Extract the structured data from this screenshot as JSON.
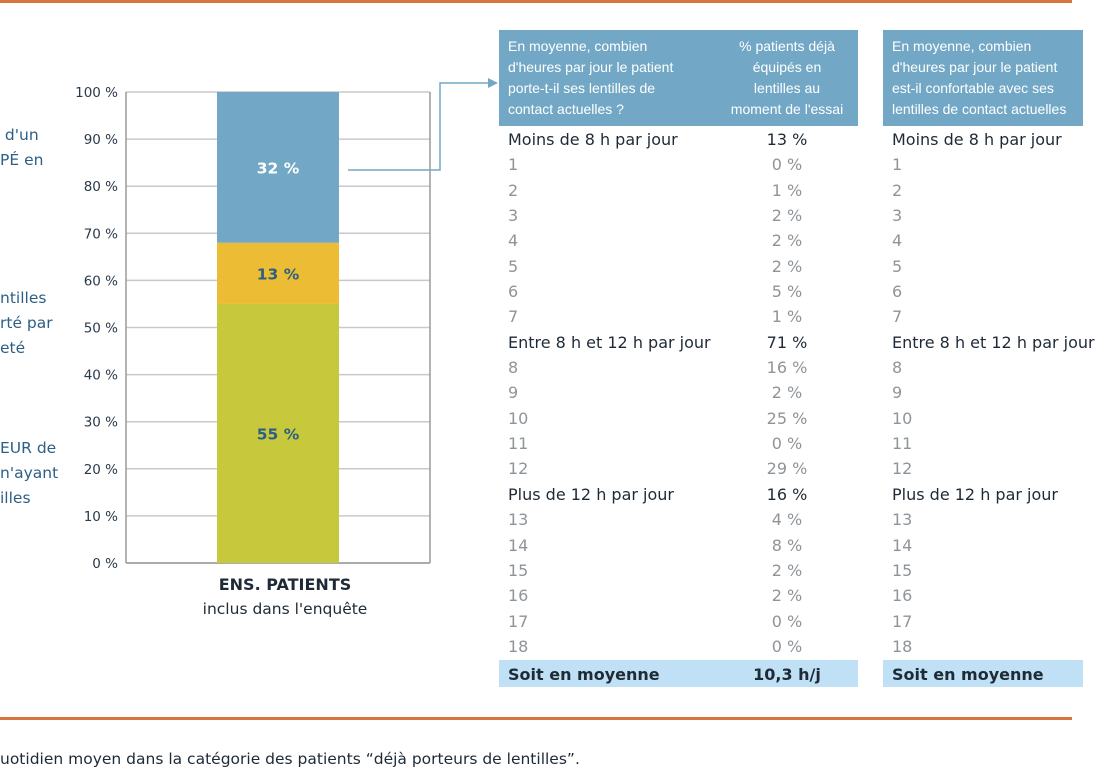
{
  "left_labels": [
    {
      "text": " d'un\nPÉ en"
    },
    {
      "text": "ntilles\nrté par\neté"
    },
    {
      "text": "EUR de\nn'ayant\nilles"
    }
  ],
  "chart_data": {
    "type": "bar",
    "stacked": true,
    "categories": [
      "ENS. PATIENTS"
    ],
    "category_sublabel": "inclus dans l'enquête",
    "series": [
      {
        "values": [
          55
        ],
        "color": "#c8c83c",
        "label": "55 %",
        "label_color": "#2d5f85"
      },
      {
        "values": [
          13
        ],
        "color": "#ecbd34",
        "label": "13 %",
        "label_color": "#2d5f85"
      },
      {
        "values": [
          32
        ],
        "color": "#72a8c6",
        "label": "32 %",
        "label_color": "#ffffff"
      }
    ],
    "ylim": [
      0,
      100
    ],
    "yticks": [
      "0 %",
      "10 %",
      "20 %",
      "30 %",
      "40 %",
      "50 %",
      "60 %",
      "70 %",
      "80 %",
      "90 %",
      "100 %"
    ],
    "grid": true
  },
  "table1": {
    "header_col1": "En moyenne, combien\nd'heures par jour le patient\nporte-t-il ses lentilles de\ncontact actuelles ?",
    "header_col2": "% patients déjà\néquipés en\nlentilles au\nmoment de l'essai",
    "rows": [
      {
        "label": "Moins de 8 h par jour",
        "value": "13 %",
        "type": "main"
      },
      {
        "label": "1",
        "value": "0 %",
        "type": "sub"
      },
      {
        "label": "2",
        "value": "1 %",
        "type": "sub"
      },
      {
        "label": "3",
        "value": "2 %",
        "type": "sub"
      },
      {
        "label": "4",
        "value": "2 %",
        "type": "sub"
      },
      {
        "label": "5",
        "value": "2 %",
        "type": "sub"
      },
      {
        "label": "6",
        "value": "5 %",
        "type": "sub"
      },
      {
        "label": "7",
        "value": "1 %",
        "type": "sub"
      },
      {
        "label": "Entre 8 h et 12 h par jour",
        "value": "71 %",
        "type": "main"
      },
      {
        "label": "8",
        "value": "16 %",
        "type": "sub"
      },
      {
        "label": "9",
        "value": "2 %",
        "type": "sub"
      },
      {
        "label": "10",
        "value": "25 %",
        "type": "sub"
      },
      {
        "label": "11",
        "value": "0 %",
        "type": "sub"
      },
      {
        "label": "12",
        "value": "29 %",
        "type": "sub"
      },
      {
        "label": "Plus de 12 h par jour",
        "value": "16 %",
        "type": "main"
      },
      {
        "label": "13",
        "value": "4 %",
        "type": "sub"
      },
      {
        "label": "14",
        "value": "8 %",
        "type": "sub"
      },
      {
        "label": "15",
        "value": "2 %",
        "type": "sub"
      },
      {
        "label": "16",
        "value": "2 %",
        "type": "sub"
      },
      {
        "label": "17",
        "value": "0 %",
        "type": "sub"
      },
      {
        "label": "18",
        "value": "0 %",
        "type": "sub"
      }
    ],
    "total_label": "Soit en moyenne",
    "total_value": "10,3 h/j"
  },
  "table2": {
    "header_col1": "En moyenne, combien\nd'heures par jour le patient\nest-il confortable avec ses\nlentilles de contact actuelles",
    "rows": [
      {
        "label": "Moins de 8 h par jour",
        "type": "main"
      },
      {
        "label": "1",
        "type": "sub"
      },
      {
        "label": "2",
        "type": "sub"
      },
      {
        "label": "3",
        "type": "sub"
      },
      {
        "label": "4",
        "type": "sub"
      },
      {
        "label": "5",
        "type": "sub"
      },
      {
        "label": "6",
        "type": "sub"
      },
      {
        "label": "7",
        "type": "sub"
      },
      {
        "label": "Entre 8 h et 12 h par jour",
        "type": "main"
      },
      {
        "label": "8",
        "type": "sub"
      },
      {
        "label": "9",
        "type": "sub"
      },
      {
        "label": "10",
        "type": "sub"
      },
      {
        "label": "11",
        "type": "sub"
      },
      {
        "label": "12",
        "type": "sub"
      },
      {
        "label": "Plus de 12 h par jour",
        "type": "main"
      },
      {
        "label": "13",
        "type": "sub"
      },
      {
        "label": "14",
        "type": "sub"
      },
      {
        "label": "15",
        "type": "sub"
      },
      {
        "label": "16",
        "type": "sub"
      },
      {
        "label": "17",
        "type": "sub"
      },
      {
        "label": "18",
        "type": "sub"
      }
    ],
    "total_label": "Soit en moyenne"
  },
  "footnote": "uotidien moyen dans la catégorie des patients “déjà porteurs de lentilles”."
}
